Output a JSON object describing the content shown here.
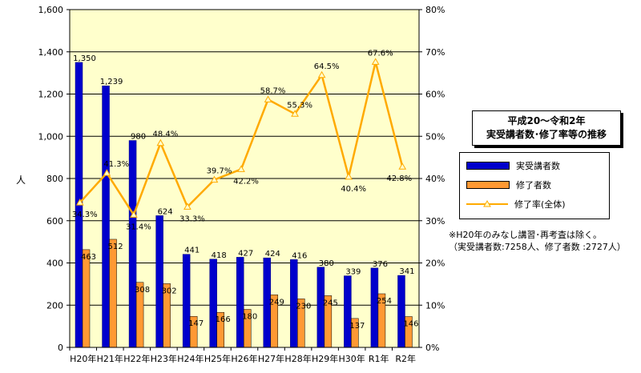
{
  "chart_data": {
    "type": "bar+line",
    "categories": [
      "H20年",
      "H21年",
      "H22年",
      "H23年",
      "H24年",
      "H25年",
      "H26年",
      "H27年",
      "H28年",
      "H29年",
      "H30年",
      "R1年",
      "R2年"
    ],
    "series": [
      {
        "name": "実受講者数",
        "type": "bar",
        "axis": "left",
        "color": "#0000cc",
        "values": [
          1350,
          1239,
          980,
          624,
          441,
          418,
          427,
          424,
          416,
          380,
          339,
          376,
          341
        ],
        "labels": [
          "1,350",
          "1,239",
          "980",
          "624",
          "441",
          "418",
          "427",
          "424",
          "416",
          "380",
          "339",
          "376",
          "341"
        ]
      },
      {
        "name": "修了者数",
        "type": "bar",
        "axis": "left",
        "color": "#ff9933",
        "values": [
          463,
          512,
          308,
          302,
          147,
          166,
          180,
          249,
          230,
          245,
          137,
          254,
          146
        ],
        "labels": [
          "463",
          "512",
          "308",
          "302",
          "147",
          "166",
          "180",
          "249",
          "230",
          "245",
          "137",
          "254",
          "146"
        ]
      },
      {
        "name": "修了率(全体)",
        "type": "line",
        "axis": "right",
        "color": "#ffaa00",
        "values": [
          34.3,
          41.3,
          31.4,
          48.4,
          33.3,
          39.7,
          42.2,
          58.7,
          55.3,
          64.5,
          40.4,
          67.6,
          42.8
        ],
        "labels": [
          "34.3%",
          "41.3%",
          "31.4%",
          "48.4%",
          "33.3%",
          "39.7%",
          "42.2%",
          "58.7%",
          "55.3%",
          "64.5%",
          "40.4%",
          "67.6%",
          "42.8%"
        ]
      }
    ],
    "left_axis": {
      "min": 0,
      "max": 1600,
      "step": 200,
      "tick_labels": [
        "0",
        "200",
        "400",
        "600",
        "800",
        "1,000",
        "1,200",
        "1,400",
        "1,600"
      ]
    },
    "right_axis": {
      "min": 0,
      "max": 80,
      "step": 10,
      "tick_labels": [
        "0%",
        "10%",
        "20%",
        "30%",
        "40%",
        "50%",
        "60%",
        "70%",
        "80%"
      ]
    },
    "ylabel": "人",
    "grid": true,
    "plot_background": "#ffffcc"
  },
  "title_box": {
    "line1": "平成20～令和2年",
    "line2": "実受講者数･修了率等の推移"
  },
  "legend": {
    "items": [
      {
        "label": "実受講者数",
        "color": "#0000cc"
      },
      {
        "label": "修了者数",
        "color": "#ff9933"
      },
      {
        "label": "修了率(全体)",
        "color": "#ffaa00"
      }
    ]
  },
  "note": {
    "line1": "※H20年のみなし講習･再考査は除く。",
    "line2": "（実受講者数:7258人、修了者数 :2727人）"
  }
}
